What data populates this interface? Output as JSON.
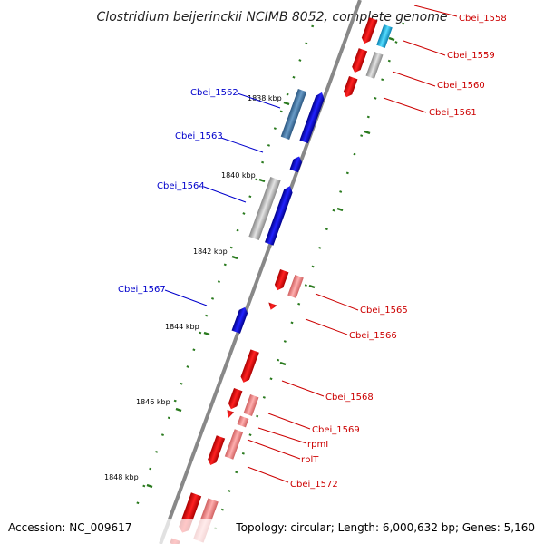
{
  "title": "Clostridium beijerinckii NCIMB 8052, complete genome",
  "footer": {
    "accession": "Accession: NC_009617",
    "topology": "Topology: circular; Length: 6,000,632 bp; Genes: 5,160"
  },
  "colors": {
    "backbone": "#888888",
    "tick": "#2a7a1e",
    "forward_gene": "#0000ee",
    "forward_gene_alt": "#4a7fb5",
    "reverse_gene": "#ee1111",
    "reverse_gene_light": "#f08888",
    "gray_gene": "#bbbbbb",
    "cyan_gene": "#22bbee",
    "label_blue": "#0000cc",
    "label_red": "#cc0000"
  },
  "kbp_markers": [
    "1838 kbp",
    "1840 kbp",
    "1842 kbp",
    "1844 kbp",
    "1846 kbp",
    "1848 kbp"
  ],
  "gene_labels": {
    "left": [
      "Cbei_1562",
      "Cbei_1563",
      "Cbei_1564",
      "Cbei_1567"
    ],
    "right": [
      "Cbei_1558",
      "Cbei_1559",
      "Cbei_1560",
      "Cbei_1561",
      "Cbei_1565",
      "Cbei_1566",
      "Cbei_1568",
      "Cbei_1569",
      "rpmI",
      "rplT",
      "Cbei_1572"
    ]
  }
}
